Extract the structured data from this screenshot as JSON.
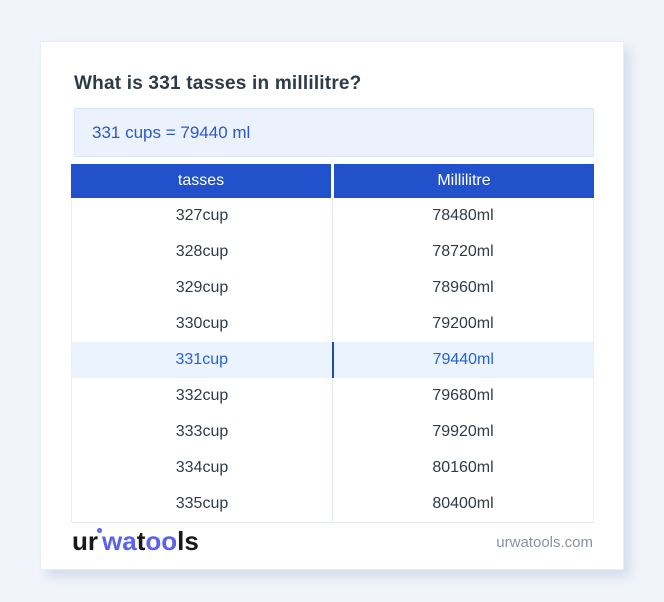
{
  "page": {
    "title": "What is 331 tasses in millilitre?",
    "answer": "331 cups = 79440 ml"
  },
  "table": {
    "headers": [
      "tasses",
      "Millilitre"
    ],
    "rows": [
      {
        "tasses": "327cup",
        "ml": "78480ml"
      },
      {
        "tasses": "328cup",
        "ml": "78720ml"
      },
      {
        "tasses": "329cup",
        "ml": "78960ml"
      },
      {
        "tasses": "330cup",
        "ml": "79200ml"
      },
      {
        "tasses": "331cup",
        "ml": "79440ml"
      },
      {
        "tasses": "332cup",
        "ml": "79680ml"
      },
      {
        "tasses": "333cup",
        "ml": "79920ml"
      },
      {
        "tasses": "334cup",
        "ml": "80160ml"
      },
      {
        "tasses": "335cup",
        "ml": "80400ml"
      }
    ],
    "highlighted_row": "331cup"
  },
  "footer": {
    "logo_ur": "ur",
    "logo_wa": "wa",
    "logo_t": "t",
    "logo_oo": "oo",
    "logo_ls": "ls",
    "site": "urwatools.com"
  },
  "colors": {
    "page_bg": "#f1f4fa",
    "table_header_bg": "#2152cb",
    "answer_bg": "#ebf2fd",
    "answer_text": "#2b59c8",
    "highlight_row_bg": "#eaf3fe",
    "highlight_text": "#2563d4",
    "logo_accent": "#5a62ef"
  }
}
